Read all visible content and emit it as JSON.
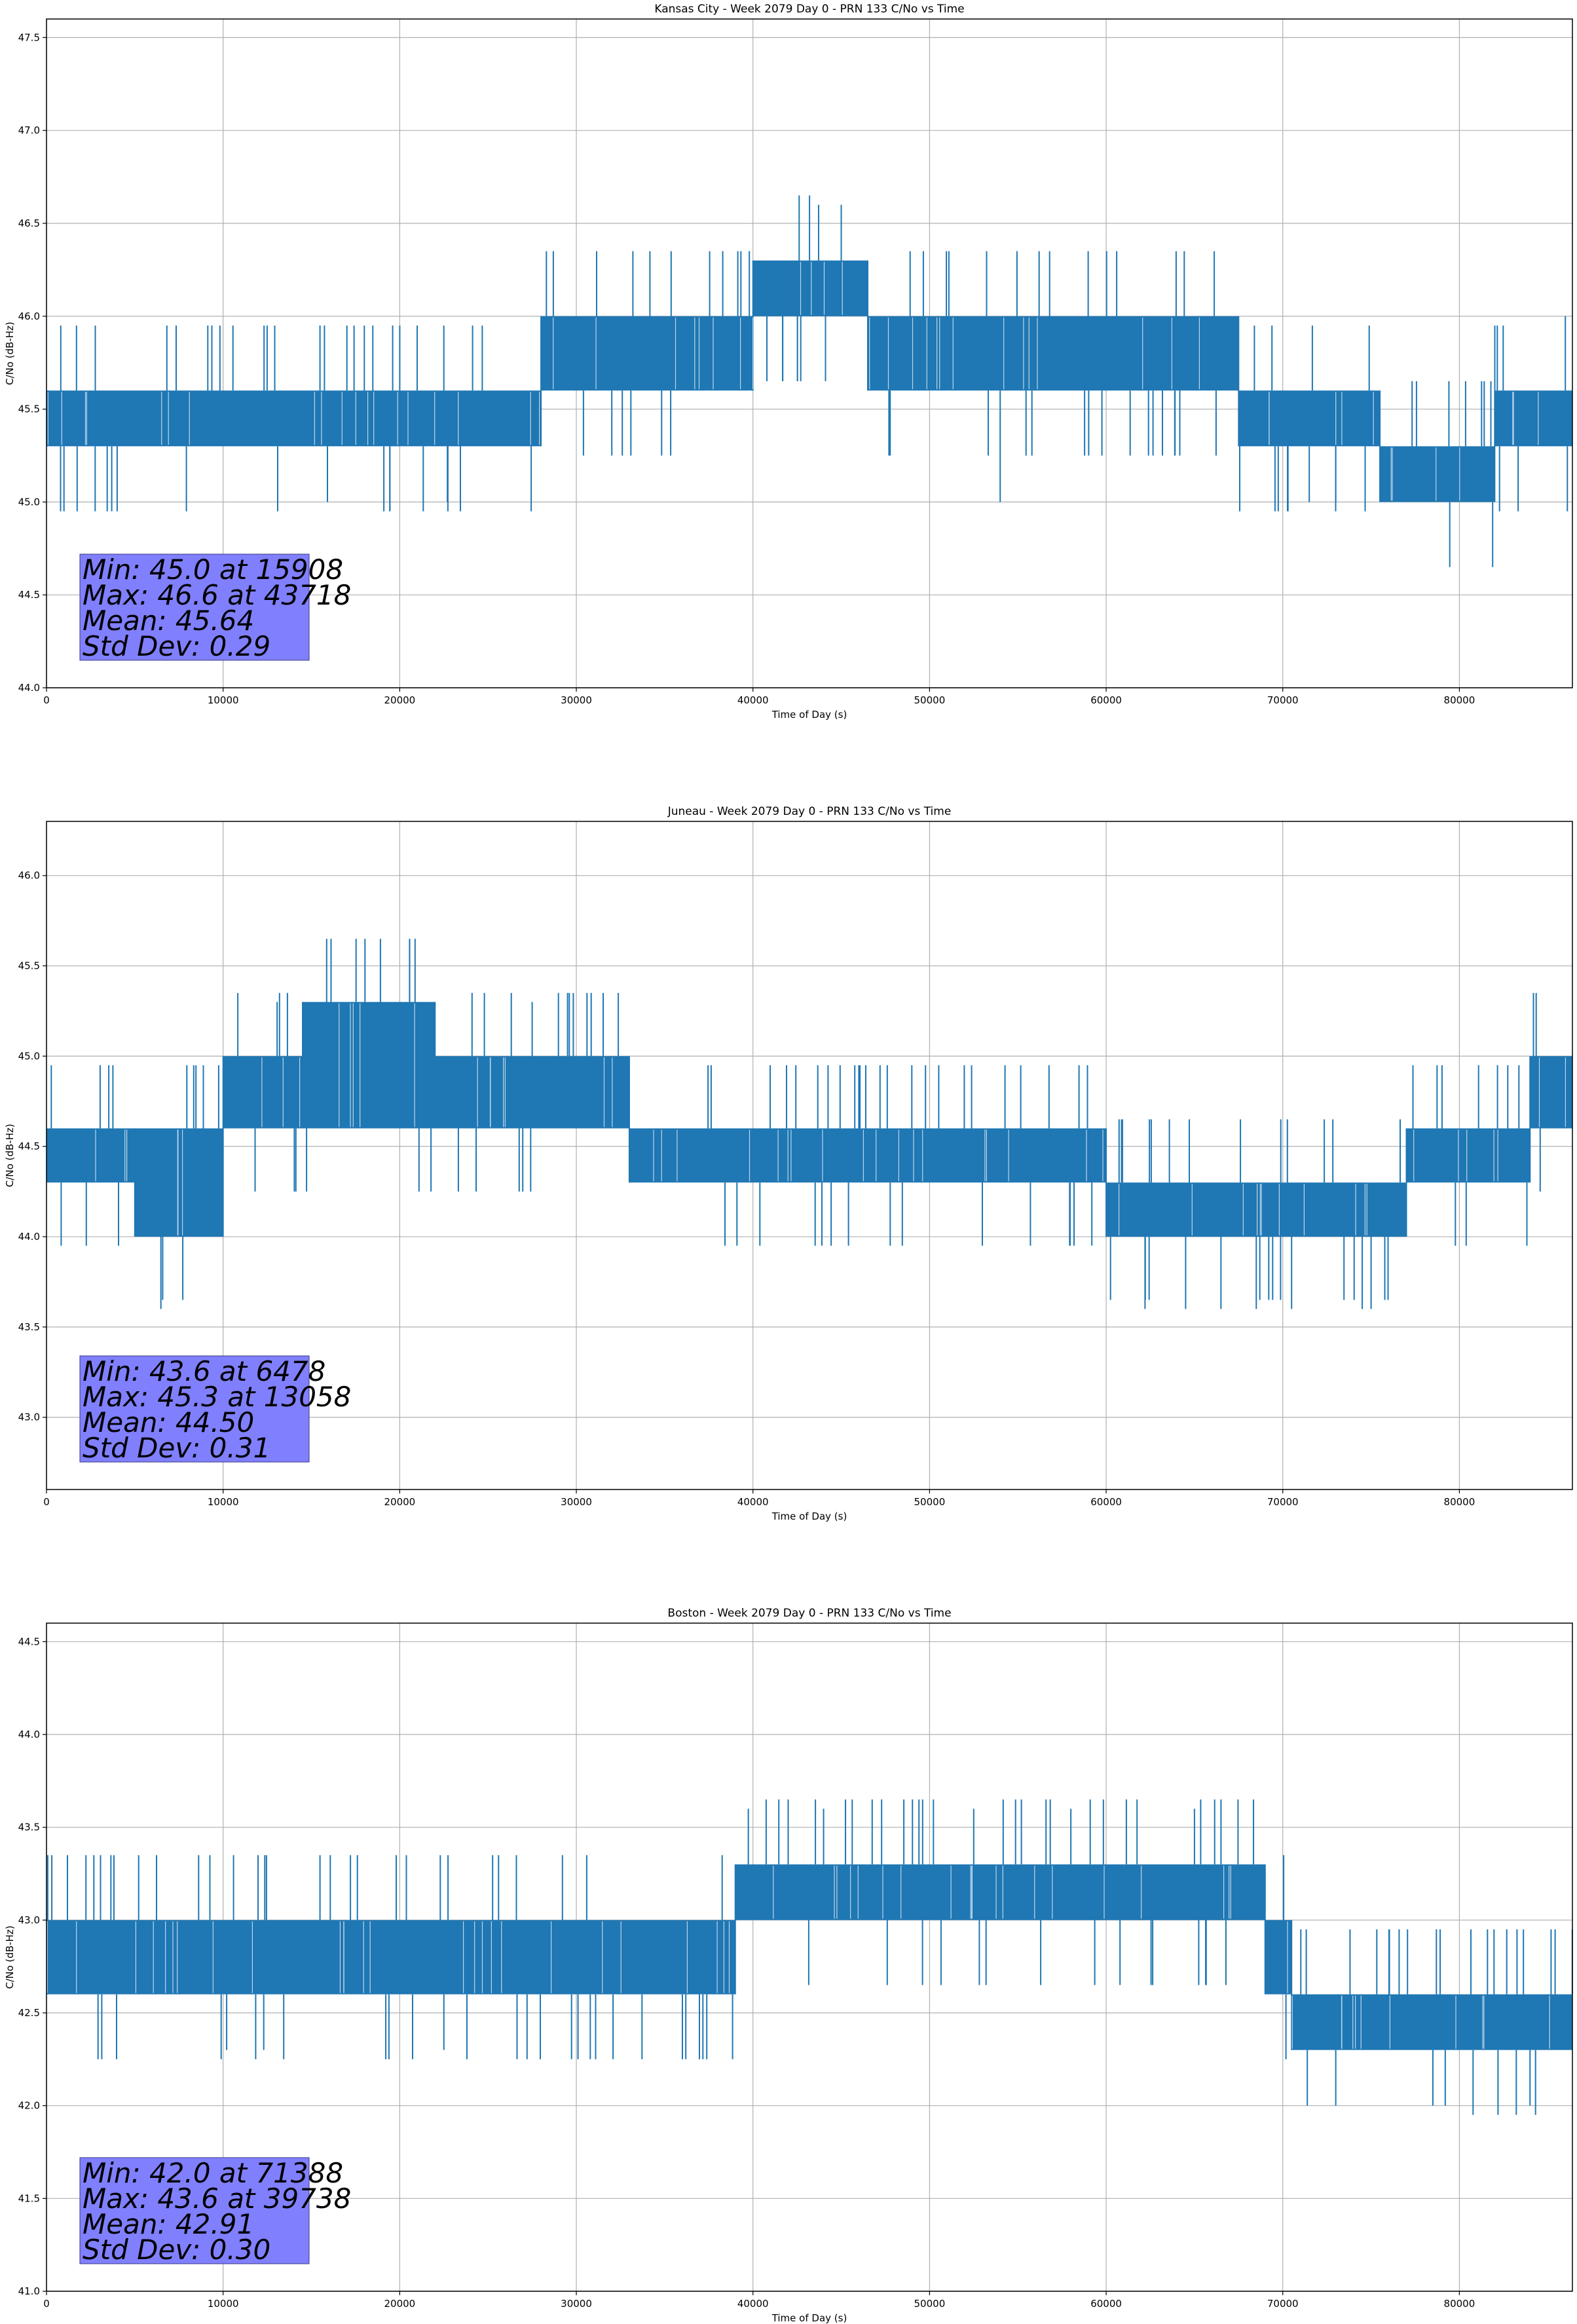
{
  "colors": {
    "series": "#1f77b4",
    "grid": "#b0b0b0",
    "statsbox": "#8080ff",
    "background": "#ffffff"
  },
  "chart_data": [
    {
      "type": "line",
      "title": "Kansas City - Week 2079 Day 0 - PRN 133 C/No vs Time",
      "xlabel": "Time of Day (s)",
      "ylabel": "C/No (dB-Hz)",
      "xlim": [
        0,
        86400
      ],
      "ylim": [
        44.0,
        47.6
      ],
      "xticks": [
        0,
        10000,
        20000,
        30000,
        40000,
        50000,
        60000,
        70000,
        80000
      ],
      "yticks": [
        44.0,
        44.5,
        45.0,
        45.5,
        46.0,
        46.5,
        47.0,
        47.5
      ],
      "grid": true,
      "bands": [
        {
          "x0": 0,
          "x1": 28000,
          "lo": 45.3,
          "hi": 45.6
        },
        {
          "x0": 28000,
          "x1": 40000,
          "lo": 45.6,
          "hi": 46.0
        },
        {
          "x0": 40000,
          "x1": 46500,
          "lo": 46.0,
          "hi": 46.3
        },
        {
          "x0": 46500,
          "x1": 67500,
          "lo": 45.6,
          "hi": 46.0
        },
        {
          "x0": 67500,
          "x1": 75500,
          "lo": 45.3,
          "hi": 45.6
        },
        {
          "x0": 75500,
          "x1": 82000,
          "lo": 45.0,
          "hi": 45.3
        },
        {
          "x0": 82000,
          "x1": 86400,
          "lo": 45.3,
          "hi": 45.6
        }
      ],
      "spikes": [
        {
          "x": 15908,
          "y": 45.0
        },
        {
          "x": 22700,
          "y": 45.0
        },
        {
          "x": 43718,
          "y": 46.6
        },
        {
          "x": 45000,
          "y": 46.6
        },
        {
          "x": 54000,
          "y": 45.0
        },
        {
          "x": 71500,
          "y": 45.0
        },
        {
          "x": 73000,
          "y": 45.0
        },
        {
          "x": 86000,
          "y": 46.0
        }
      ],
      "stats": [
        "Min: 45.0 at 15908",
        "Max: 46.6 at 43718",
        "Mean: 45.64",
        "Std Dev: 0.29"
      ]
    },
    {
      "type": "line",
      "title": "Juneau - Week 2079 Day 0 - PRN 133 C/No vs Time",
      "xlabel": "Time of Day (s)",
      "ylabel": "C/No (dB-Hz)",
      "xlim": [
        0,
        86400
      ],
      "ylim": [
        42.6,
        46.3
      ],
      "xticks": [
        0,
        10000,
        20000,
        30000,
        40000,
        50000,
        60000,
        70000,
        80000
      ],
      "yticks": [
        43.0,
        43.5,
        44.0,
        44.5,
        45.0,
        45.5,
        46.0
      ],
      "grid": true,
      "bands": [
        {
          "x0": 0,
          "x1": 5000,
          "lo": 44.3,
          "hi": 44.6
        },
        {
          "x0": 5000,
          "x1": 10000,
          "lo": 44.0,
          "hi": 44.6
        },
        {
          "x0": 10000,
          "x1": 14500,
          "lo": 44.6,
          "hi": 45.0
        },
        {
          "x0": 14500,
          "x1": 22000,
          "lo": 44.6,
          "hi": 45.3
        },
        {
          "x0": 22000,
          "x1": 33000,
          "lo": 44.6,
          "hi": 45.0
        },
        {
          "x0": 33000,
          "x1": 60000,
          "lo": 44.3,
          "hi": 44.6
        },
        {
          "x0": 60000,
          "x1": 77000,
          "lo": 44.0,
          "hi": 44.3
        },
        {
          "x0": 77000,
          "x1": 84000,
          "lo": 44.3,
          "hi": 44.6
        },
        {
          "x0": 84000,
          "x1": 86400,
          "lo": 44.6,
          "hi": 45.0
        }
      ],
      "spikes": [
        {
          "x": 6478,
          "y": 43.6
        },
        {
          "x": 62200,
          "y": 43.6
        },
        {
          "x": 64500,
          "y": 43.6
        },
        {
          "x": 66500,
          "y": 43.6
        },
        {
          "x": 68500,
          "y": 43.6
        },
        {
          "x": 70500,
          "y": 43.6
        },
        {
          "x": 74500,
          "y": 43.6
        },
        {
          "x": 75000,
          "y": 43.6
        },
        {
          "x": 13058,
          "y": 45.3
        },
        {
          "x": 27500,
          "y": 45.3
        }
      ],
      "stats": [
        "Min: 43.6 at 6478",
        "Max: 45.3 at 13058",
        "Mean: 44.50",
        "Std Dev: 0.31"
      ]
    },
    {
      "type": "line",
      "title": "Boston - Week 2079 Day 0 - PRN 133 C/No vs Time",
      "xlabel": "Time of Day (s)",
      "ylabel": "C/No (dB-Hz)",
      "xlim": [
        0,
        86400
      ],
      "ylim": [
        41.0,
        44.6
      ],
      "xticks": [
        0,
        10000,
        20000,
        30000,
        40000,
        50000,
        60000,
        70000,
        80000
      ],
      "yticks": [
        41.0,
        41.5,
        42.0,
        42.5,
        43.0,
        43.5,
        44.0,
        44.5
      ],
      "grid": true,
      "bands": [
        {
          "x0": 0,
          "x1": 39000,
          "lo": 42.6,
          "hi": 43.0
        },
        {
          "x0": 39000,
          "x1": 69000,
          "lo": 43.0,
          "hi": 43.3
        },
        {
          "x0": 69000,
          "x1": 70500,
          "lo": 42.6,
          "hi": 43.0
        },
        {
          "x0": 70500,
          "x1": 86400,
          "lo": 42.3,
          "hi": 42.6
        }
      ],
      "spikes": [
        {
          "x": 39738,
          "y": 43.6
        },
        {
          "x": 44000,
          "y": 43.6
        },
        {
          "x": 52500,
          "y": 43.6
        },
        {
          "x": 58000,
          "y": 43.6
        },
        {
          "x": 65000,
          "y": 43.6
        },
        {
          "x": 71388,
          "y": 42.0
        },
        {
          "x": 73000,
          "y": 42.0
        },
        {
          "x": 78500,
          "y": 42.0
        },
        {
          "x": 79200,
          "y": 42.0
        },
        {
          "x": 84000,
          "y": 42.0
        },
        {
          "x": 10200,
          "y": 42.3
        },
        {
          "x": 12300,
          "y": 42.3
        },
        {
          "x": 22500,
          "y": 42.3
        }
      ],
      "stats": [
        "Min: 42.0 at 71388",
        "Max: 43.6 at 39738",
        "Mean: 42.91",
        "Std Dev: 0.30"
      ]
    }
  ]
}
